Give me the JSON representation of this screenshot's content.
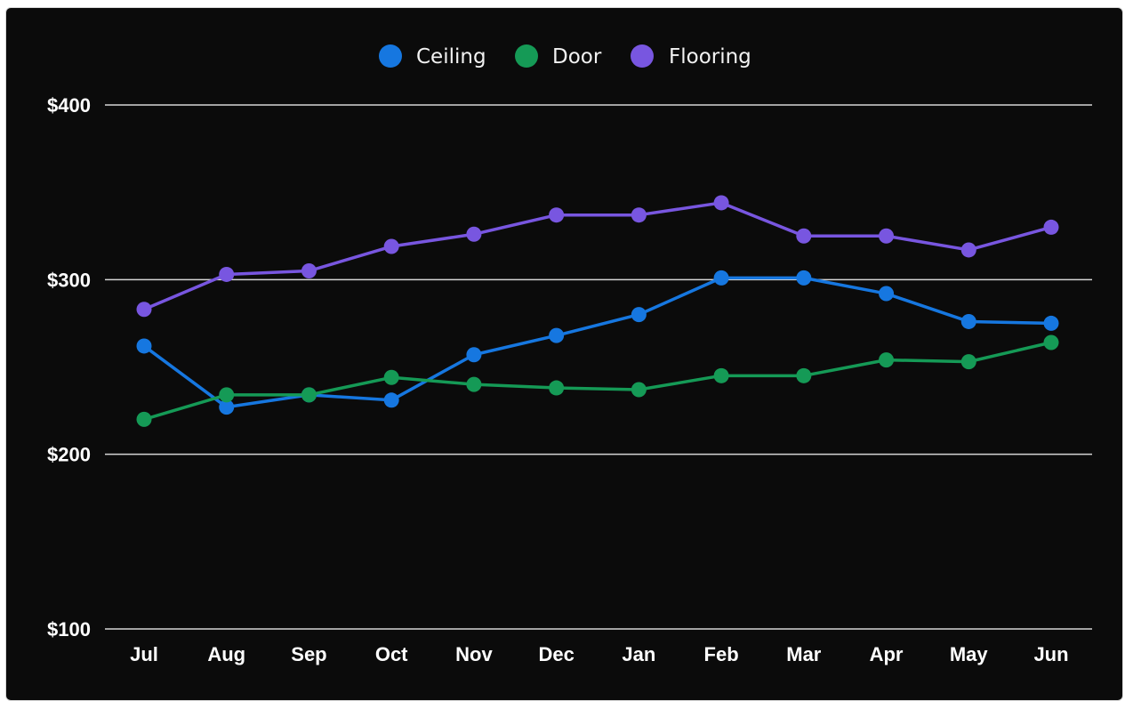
{
  "chart_data": {
    "type": "line",
    "categories": [
      "Jul",
      "Aug",
      "Sep",
      "Oct",
      "Nov",
      "Dec",
      "Jan",
      "Feb",
      "Mar",
      "Apr",
      "May",
      "Jun"
    ],
    "series": [
      {
        "name": "Ceiling",
        "color": "#1677e0",
        "values": [
          262,
          227,
          234,
          231,
          257,
          268,
          280,
          301,
          301,
          292,
          276,
          275
        ]
      },
      {
        "name": "Door",
        "color": "#159a56",
        "values": [
          220,
          234,
          234,
          244,
          240,
          238,
          237,
          245,
          245,
          254,
          253,
          264
        ]
      },
      {
        "name": "Flooring",
        "color": "#7856e0",
        "values": [
          283,
          303,
          305,
          319,
          326,
          337,
          337,
          344,
          325,
          325,
          317,
          330
        ]
      }
    ],
    "y_ticks": [
      100,
      200,
      300,
      400
    ],
    "y_tick_labels": [
      "$100",
      "$200",
      "$300",
      "$400"
    ],
    "ylim": [
      100,
      400
    ],
    "grid": true,
    "legend_position": "top-center",
    "title": "",
    "xlabel": "",
    "ylabel": ""
  }
}
